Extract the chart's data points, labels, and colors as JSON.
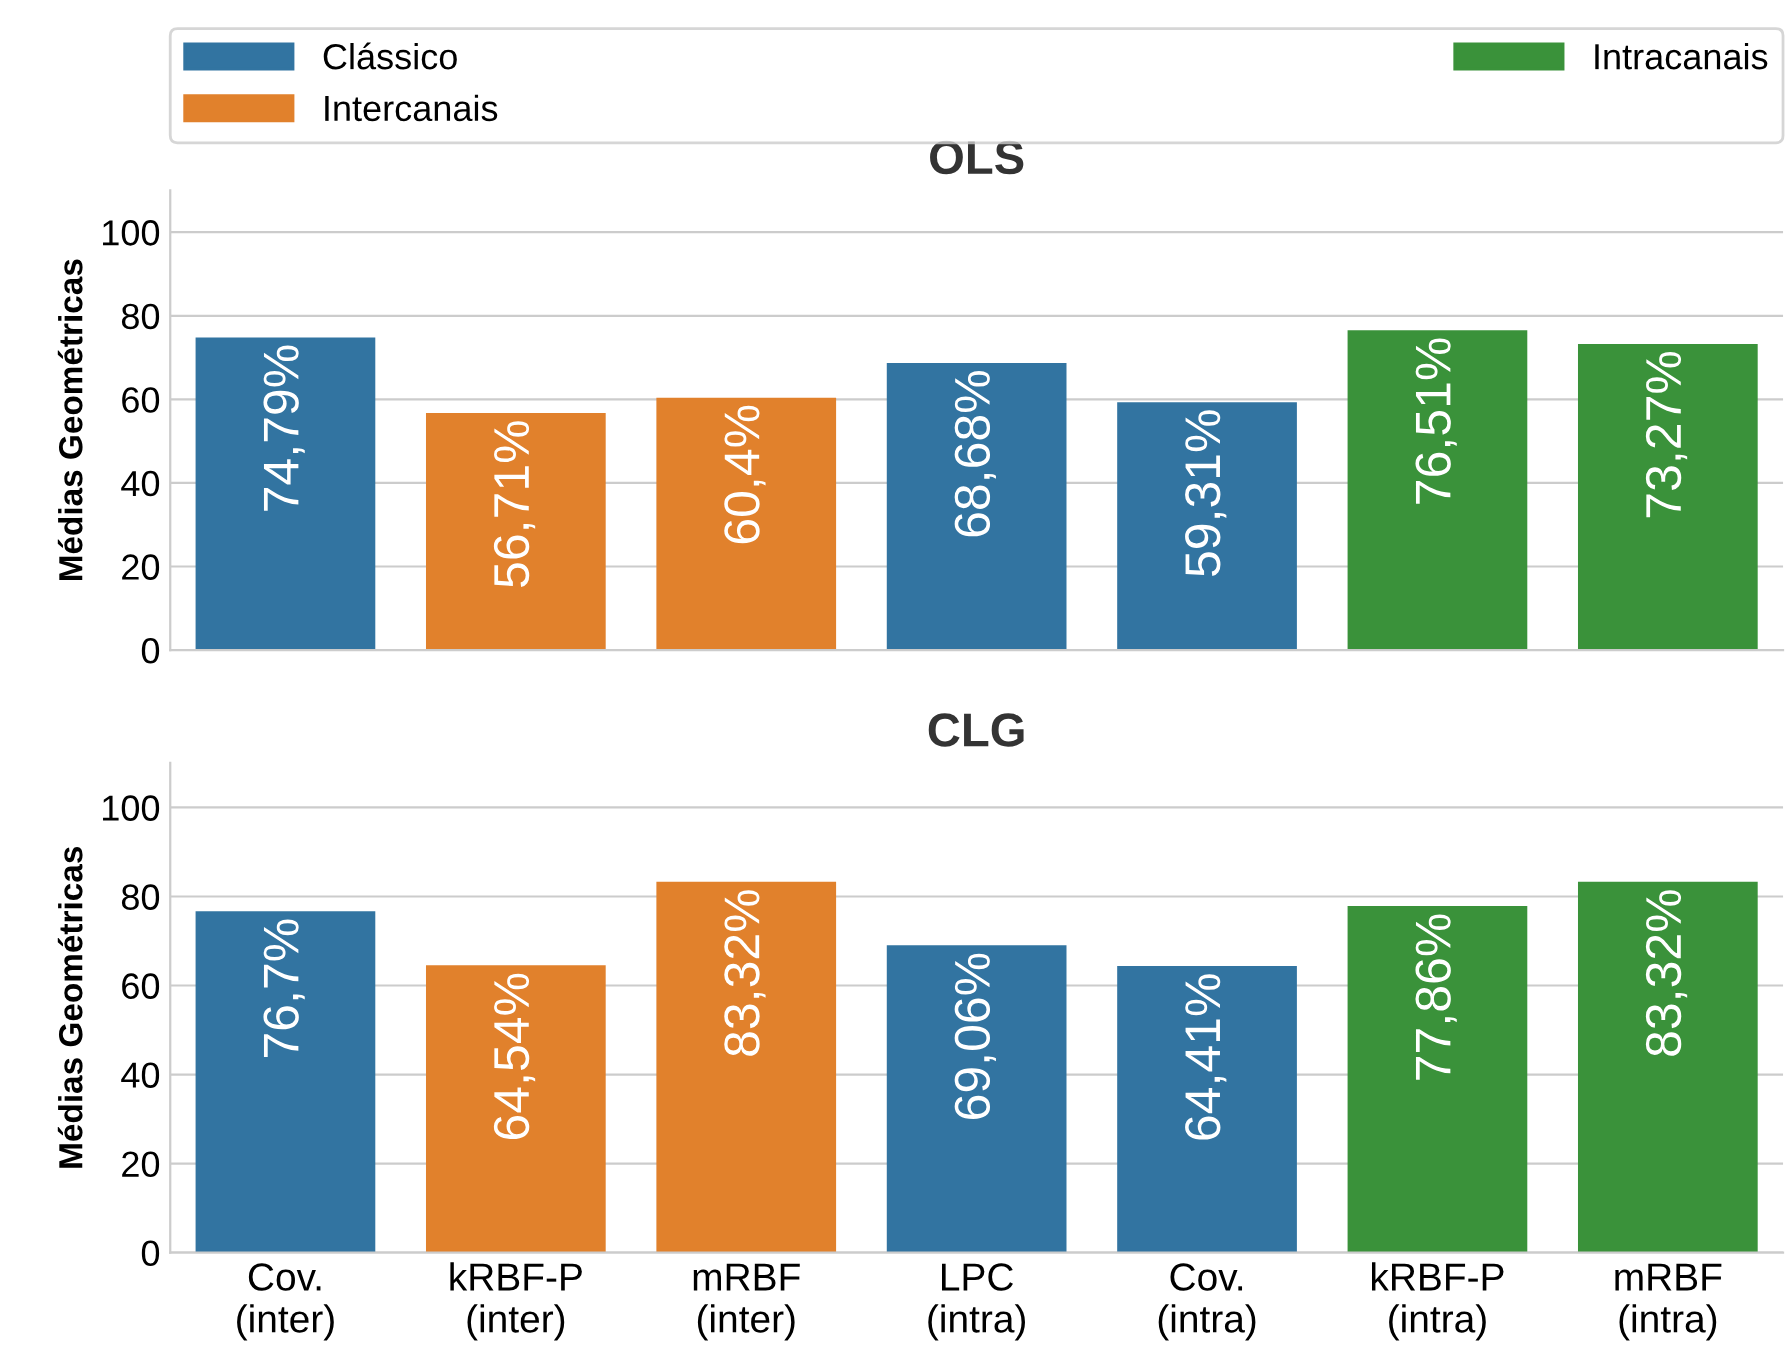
{
  "chart_data": [
    {
      "type": "bar",
      "title": "OLS",
      "ylabel": "Médias Geométricas",
      "categories": [
        null,
        null,
        null,
        null,
        null,
        null,
        null
      ],
      "ylim": [
        0,
        110
      ],
      "yticks": [
        0,
        20,
        40,
        60,
        80,
        100
      ],
      "grid": "y",
      "legend": "top",
      "series": [
        {
          "name": "Clássico",
          "color": "#3274a1",
          "values": [
            74.79,
            null,
            null,
            68.68,
            59.31,
            null,
            null
          ],
          "value_labels": [
            "74,79%",
            null,
            null,
            "68,68%",
            "59,31%",
            null,
            null
          ]
        },
        {
          "name": "Intercanais",
          "color": "#e1812c",
          "values": [
            null,
            56.71,
            60.4,
            null,
            null,
            null,
            null
          ],
          "value_labels": [
            null,
            "56,71%",
            "60,4%",
            null,
            null,
            null,
            null
          ]
        },
        {
          "name": "Intracanais",
          "color": "#3a923a",
          "values": [
            null,
            null,
            null,
            null,
            null,
            76.51,
            73.27
          ],
          "value_labels": [
            null,
            null,
            null,
            null,
            null,
            "76,51%",
            "73,27%"
          ]
        }
      ]
    },
    {
      "type": "bar",
      "title": "CLG",
      "ylabel": "Médias Geométricas",
      "categories": [
        "Cov.\n(inter)",
        "kRBF-P\n(inter)",
        "mRBF\n(inter)",
        "LPC\n(intra)",
        "Cov.\n(intra)",
        "kRBF-P\n(intra)",
        "mRBF\n(intra)"
      ],
      "ylim": [
        0,
        110
      ],
      "yticks": [
        0,
        20,
        40,
        60,
        80,
        100
      ],
      "grid": "y",
      "series": [
        {
          "color": "#3274a1",
          "values": [
            76.7,
            null,
            null,
            69.06,
            64.41,
            null,
            null
          ],
          "value_labels": [
            "76,7%",
            null,
            null,
            "69,06%",
            "64,41%",
            null,
            null
          ]
        },
        {
          "color": "#e1812c",
          "values": [
            null,
            64.54,
            83.32,
            null,
            null,
            null,
            null
          ],
          "value_labels": [
            null,
            "64,54%",
            "83,32%",
            null,
            null,
            null,
            null
          ]
        },
        {
          "color": "#3a923a",
          "values": [
            null,
            null,
            null,
            null,
            null,
            77.86,
            83.32
          ],
          "value_labels": [
            null,
            null,
            null,
            null,
            null,
            "77,86%",
            "83,32%"
          ]
        }
      ]
    }
  ]
}
